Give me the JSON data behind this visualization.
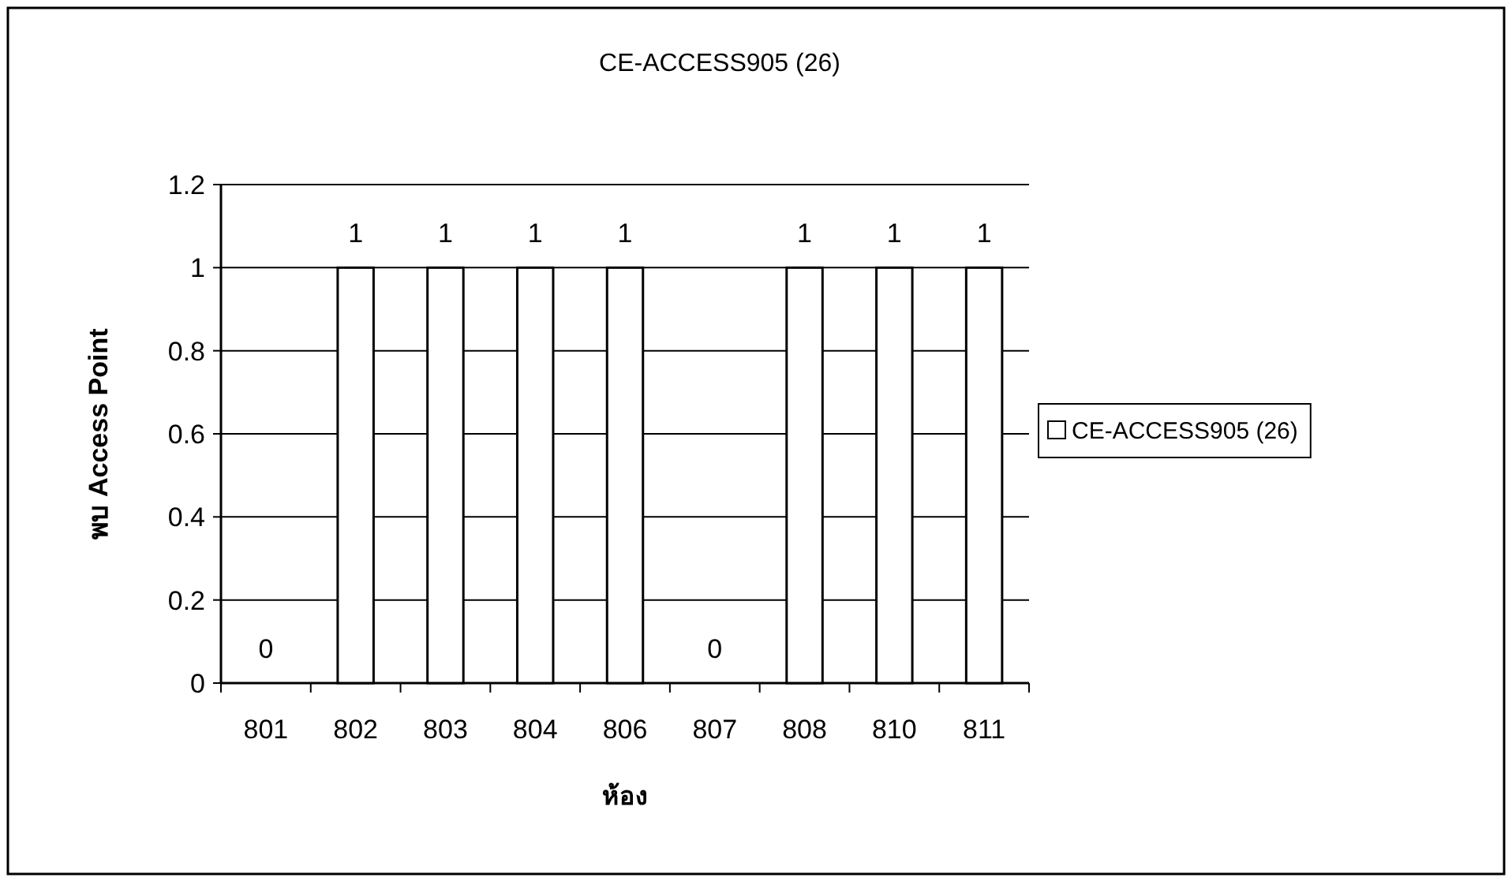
{
  "chart_data": {
    "type": "bar",
    "title": "CE-ACCESS905 (26)",
    "xlabel": "ห้อง",
    "ylabel": "พบ Access Point",
    "categories": [
      "801",
      "802",
      "803",
      "804",
      "806",
      "807",
      "808",
      "810",
      "811"
    ],
    "series": [
      {
        "name": "CE-ACCESS905 (26)",
        "color": "#ffffff",
        "values": [
          0,
          1,
          1,
          1,
          1,
          0,
          1,
          1,
          1
        ]
      }
    ],
    "ylim": [
      0,
      1.2
    ],
    "yticks": [
      0,
      0.2,
      0.4,
      0.6,
      0.8,
      1,
      1.2
    ],
    "grid": "y",
    "legend": "right",
    "data_labels": true
  }
}
